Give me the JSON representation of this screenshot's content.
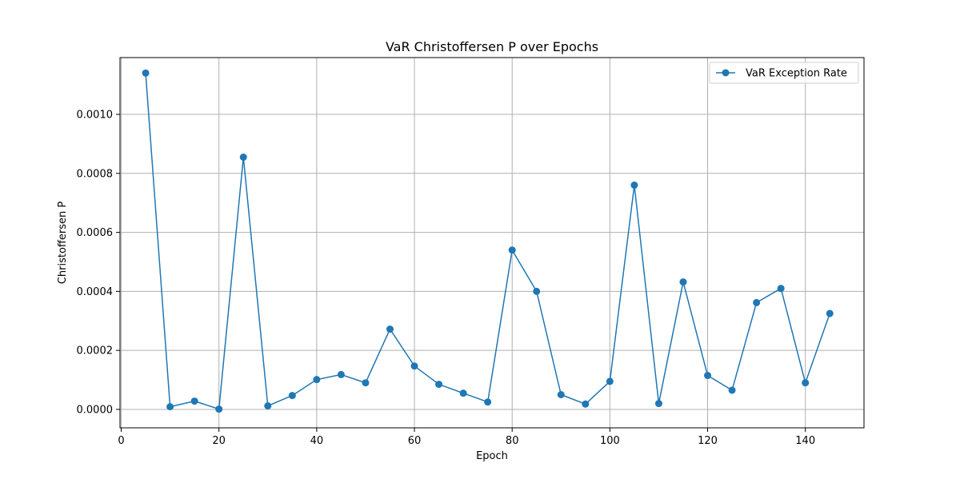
{
  "chart_data": {
    "type": "line",
    "title": "VaR Christoffersen P over Epochs",
    "xlabel": "Epoch",
    "ylabel": "Christoffersen P",
    "xlim": [
      -0.25,
      152
    ],
    "ylim": [
      -6.25e-05,
      0.0011925
    ],
    "xticks": [
      0,
      20,
      40,
      60,
      80,
      100,
      120,
      140
    ],
    "xtick_labels": [
      "0",
      "20",
      "40",
      "60",
      "80",
      "100",
      "120",
      "140"
    ],
    "yticks": [
      0,
      0.0002,
      0.0004,
      0.0006,
      0.0008,
      0.001
    ],
    "ytick_labels": [
      "0.0000",
      "0.0002",
      "0.0004",
      "0.0006",
      "0.0008",
      "0.0010"
    ],
    "grid": true,
    "legend_position": "top-right",
    "colors": {
      "series": "#1f77b4",
      "grid": "#b0b0b0"
    },
    "series": [
      {
        "name": "VaR Exception Rate",
        "marker": "circle",
        "x": [
          5,
          10,
          15,
          20,
          25,
          30,
          35,
          40,
          45,
          50,
          55,
          60,
          65,
          70,
          75,
          80,
          85,
          90,
          95,
          100,
          105,
          110,
          115,
          120,
          125,
          130,
          135,
          140,
          145
        ],
        "y": [
          0.00114,
          9e-06,
          2.8e-05,
          1e-06,
          0.000855,
          1.2e-05,
          4.7e-05,
          0.000101,
          0.000118,
          9e-05,
          0.000272,
          0.000147,
          8.5e-05,
          5.5e-05,
          2.5e-05,
          0.00054,
          0.0004,
          5e-05,
          1.8e-05,
          9.5e-05,
          0.00076,
          2e-05,
          0.000432,
          0.000115,
          6.5e-05,
          0.000362,
          0.00041,
          9e-05,
          0.000325
        ]
      }
    ]
  }
}
